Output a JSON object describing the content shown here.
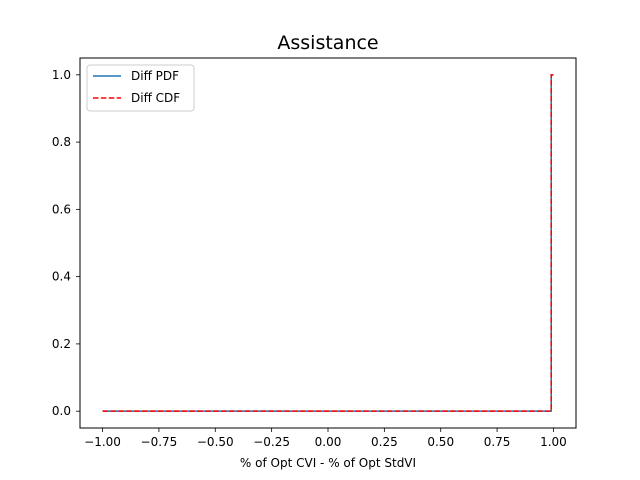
{
  "chart_data": {
    "type": "line",
    "title": "Assistance",
    "xlabel": "% of Opt CVI - % of Opt StdVI",
    "ylabel": "",
    "xlim": [
      -1.1,
      1.1
    ],
    "ylim": [
      -0.05,
      1.05
    ],
    "xticks": [
      -1.0,
      -0.75,
      -0.5,
      -0.25,
      0.0,
      0.25,
      0.5,
      0.75,
      1.0
    ],
    "xtick_labels": [
      "−1.00",
      "−0.75",
      "−0.50",
      "−0.25",
      "0.00",
      "0.25",
      "0.50",
      "0.75",
      "1.00"
    ],
    "yticks": [
      0.0,
      0.2,
      0.4,
      0.6,
      0.8,
      1.0
    ],
    "ytick_labels": [
      "0.0",
      "0.2",
      "0.4",
      "0.6",
      "0.8",
      "1.0"
    ],
    "grid": false,
    "legend_position": "top-left",
    "series": [
      {
        "name": "Diff PDF",
        "color": "#1f77b4",
        "style": "solid",
        "x": [
          -1.0,
          0.99,
          0.99,
          1.0
        ],
        "y": [
          0.0,
          0.0,
          1.0,
          1.0
        ]
      },
      {
        "name": "Diff CDF",
        "color": "#ff0000",
        "style": "dashed",
        "x": [
          -1.0,
          0.99,
          0.99,
          1.0
        ],
        "y": [
          0.0,
          0.0,
          1.0,
          1.0
        ]
      }
    ]
  }
}
